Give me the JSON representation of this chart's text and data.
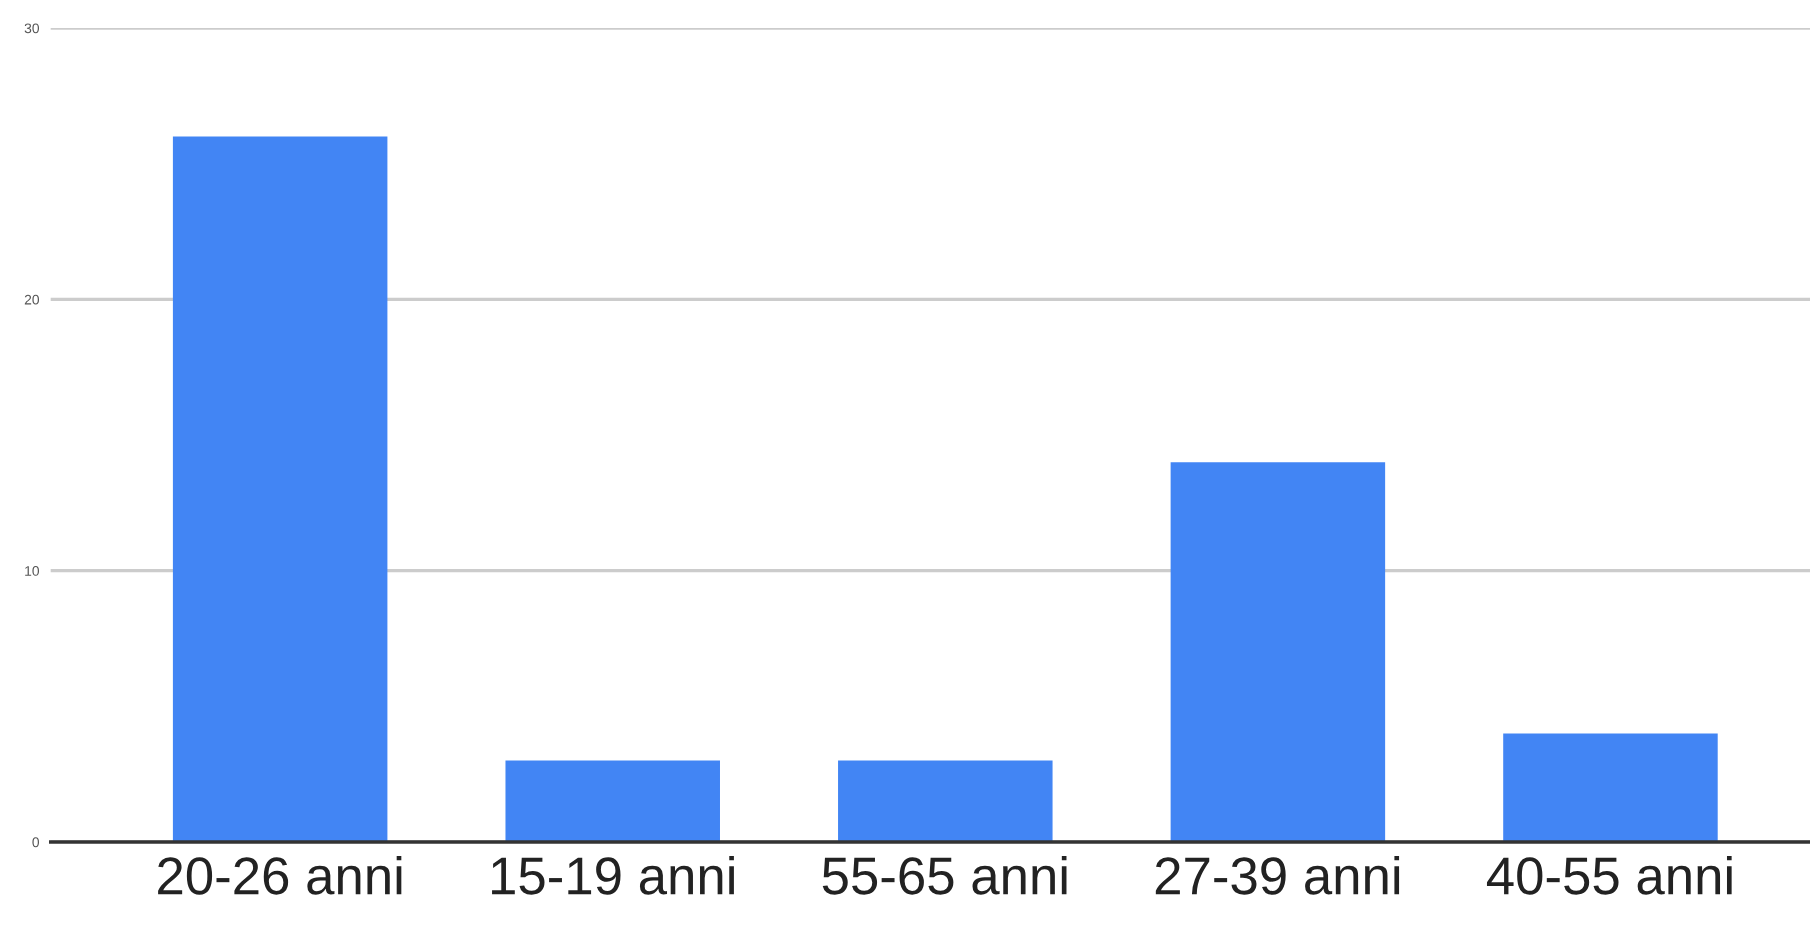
{
  "chart_data": {
    "type": "bar",
    "categories": [
      "20-26 anni",
      "15-19 anni",
      "55-65 anni",
      "27-39 anni",
      "40-55 anni"
    ],
    "values": [
      26,
      3,
      3,
      14,
      4
    ],
    "color": "#4285f4",
    "ylim": [
      0,
      30
    ],
    "yticks": [
      0,
      10,
      20,
      30
    ],
    "grid": "y"
  }
}
